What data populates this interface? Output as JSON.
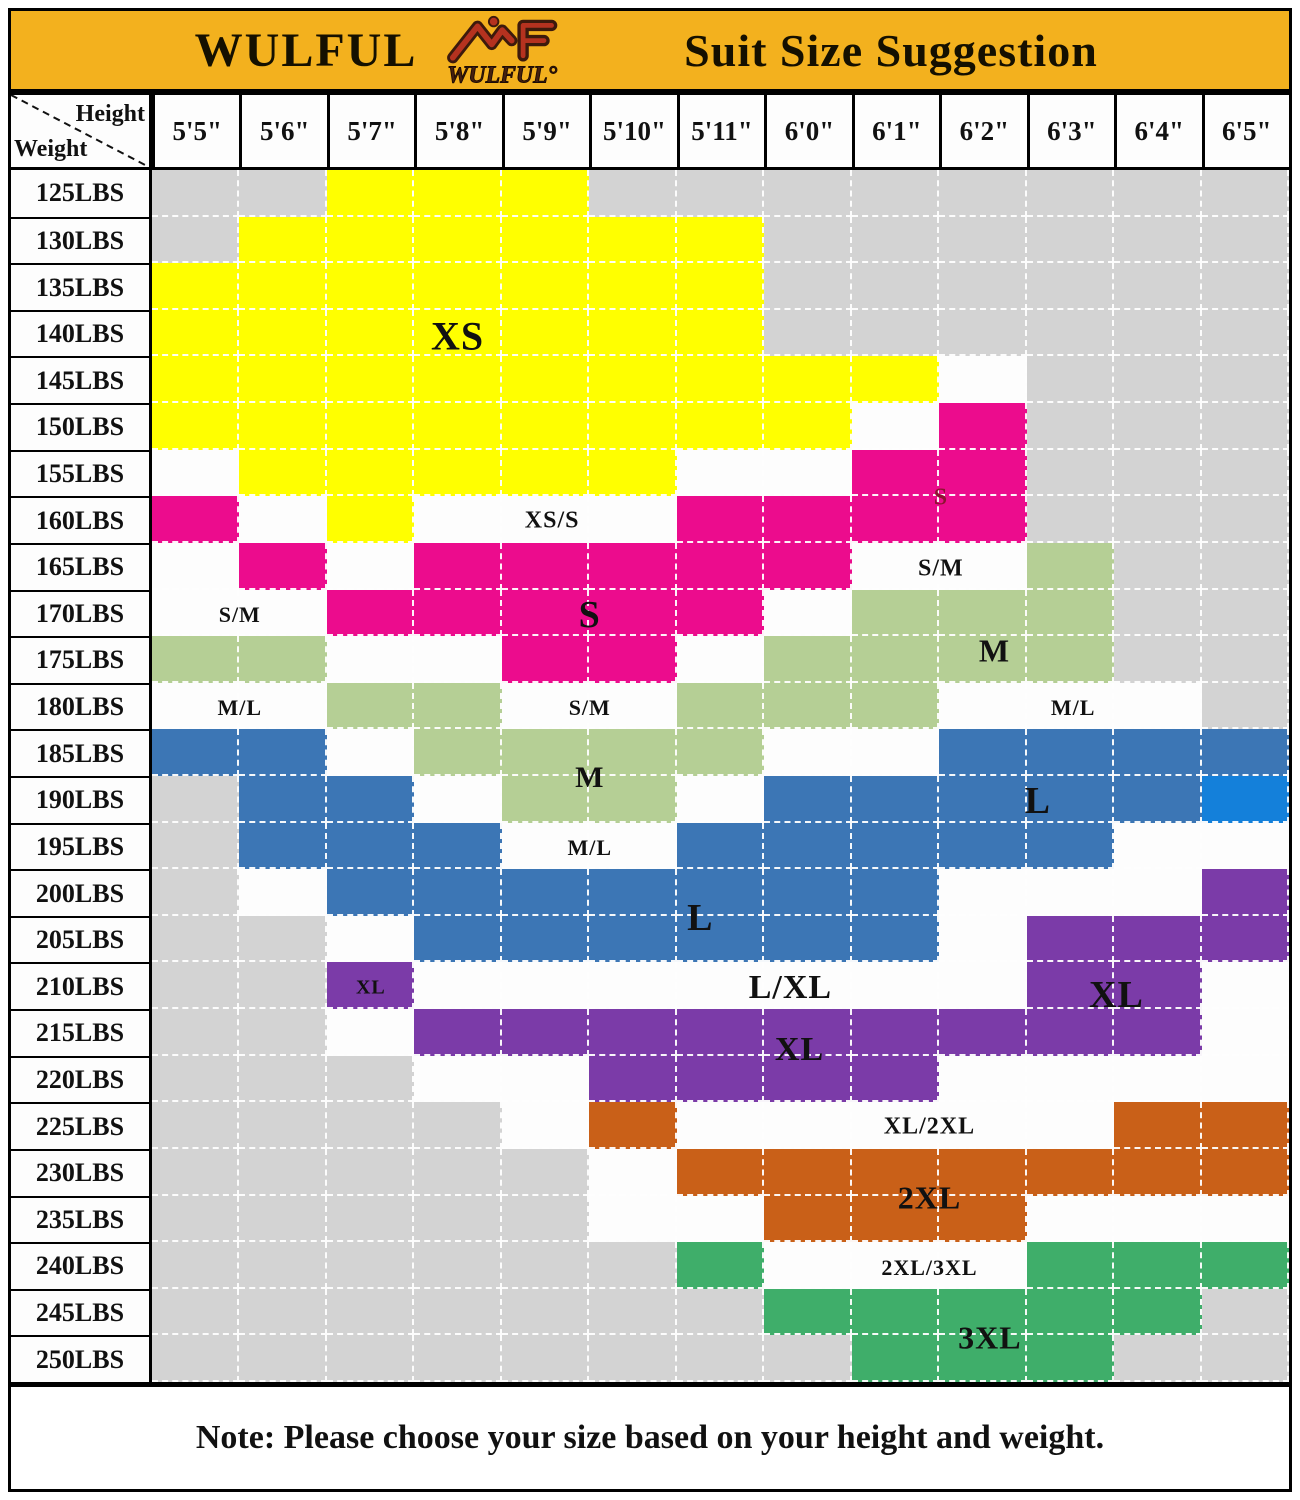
{
  "header": {
    "brand": "WULFUL",
    "title": "Suit Size Suggestion",
    "logo_text": "WULFUL",
    "background_color": "#f3b11e"
  },
  "corner": {
    "top_label": "Height",
    "bottom_label": "Weight"
  },
  "note": {
    "text": "Note: Please choose your size based on your height and weight."
  },
  "chart_data": {
    "type": "heatmap",
    "title": "WULFUL Suit Size Suggestion",
    "xlabel": "Height",
    "ylabel": "Weight",
    "x_categories": [
      "5'5\"",
      "5'6\"",
      "5'7\"",
      "5'8\"",
      "5'9\"",
      "5'10\"",
      "5'11\"",
      "6'0\"",
      "6'1\"",
      "6'2\"",
      "6'3\"",
      "6'4\"",
      "6'5\""
    ],
    "y_categories": [
      "125LBS",
      "130LBS",
      "135LBS",
      "140LBS",
      "145LBS",
      "150LBS",
      "155LBS",
      "160LBS",
      "165LBS",
      "170LBS",
      "175LBS",
      "180LBS",
      "185LBS",
      "190LBS",
      "195LBS",
      "200LBS",
      "205LBS",
      "210LBS",
      "215LBS",
      "220LBS",
      "225LBS",
      "230LBS",
      "235LBS",
      "240LBS",
      "245LBS",
      "250LBS"
    ],
    "legend": {
      "Y": {
        "size": "XS",
        "color": "#ffff00"
      },
      "P": {
        "size": "S",
        "color": "#ec0c8d"
      },
      "N": {
        "size": "M",
        "color": "#b5cf95"
      },
      "B": {
        "size": "L",
        "color": "#3c76b5"
      },
      "H": {
        "size": "L",
        "color": "#1480da"
      },
      "U": {
        "size": "XL",
        "color": "#7b3ba8"
      },
      "O": {
        "size": "2XL",
        "color": "#c96018"
      },
      "T": {
        "size": "3XL",
        "color": "#3fae6a"
      },
      "W": {
        "size": "between sizes",
        "color": "#fdfdfd"
      },
      "G": {
        "size": "n/a",
        "color": "#d3d3d3"
      }
    },
    "cells": [
      "GGYYYGGGGGGGG",
      "GYYYYYYGGGGGG",
      "YYYYYYYGGGGGG",
      "YYYYYYYGGGGGG",
      "YYYYYYYYYWGGG",
      "YYYYYYYYWPGGG",
      "WYYYYYWWPPGGG",
      "PWYWWWPPPPGGG",
      "WPWPPPPPWWNGG",
      "WWPPPPPWNNNGG",
      "NNWWPPWNNNNGG",
      "WWNNWWNNNWWWG",
      "BBWNNNNWWBBBB",
      "GBBWNNWBBBBBH",
      "GBBBWWBBBBBWW",
      "GWBBBBBBBWWWU",
      "GGWBBBBBBWUUU",
      "GGUWWWWWWWUUW",
      "GGWUUUUUUUUUW",
      "GGGWWUUUUWWWW",
      "GGGGWOWWWWWOO",
      "GGGGGWOOOOOOO",
      "GGGGGWWOOOWWW",
      "GGGGGGTWWWTTT",
      "GGGGGGGTTTTTG",
      "GGGGGGGGTTTGG"
    ],
    "annotations": [
      {
        "text": "XS",
        "x": 26.8,
        "y": 13.7,
        "fs": 40
      },
      {
        "text": "XS/S",
        "x": 35.1,
        "y": 28.9,
        "fs": 24
      },
      {
        "text": "S",
        "x": 69.2,
        "y": 27.0,
        "fs": 24,
        "color": "#8c1430"
      },
      {
        "text": "S/M",
        "x": 69.2,
        "y": 32.8,
        "fs": 24
      },
      {
        "text": "S",
        "x": 38.4,
        "y": 36.6,
        "fs": 38
      },
      {
        "text": "S/M",
        "x": 7.7,
        "y": 36.6,
        "fs": 22
      },
      {
        "text": "M",
        "x": 73.9,
        "y": 39.6,
        "fs": 32
      },
      {
        "text": "S/M",
        "x": 38.4,
        "y": 44.3,
        "fs": 22
      },
      {
        "text": "M/L",
        "x": 7.7,
        "y": 44.3,
        "fs": 22
      },
      {
        "text": "M/L",
        "x": 80.8,
        "y": 44.3,
        "fs": 22
      },
      {
        "text": "M",
        "x": 38.4,
        "y": 50.0,
        "fs": 30
      },
      {
        "text": "L",
        "x": 77.7,
        "y": 51.9,
        "fs": 38
      },
      {
        "text": "M/L",
        "x": 38.4,
        "y": 55.8,
        "fs": 22
      },
      {
        "text": "L",
        "x": 48.1,
        "y": 61.6,
        "fs": 38
      },
      {
        "text": "XL",
        "x": 19.2,
        "y": 67.3,
        "fs": 20
      },
      {
        "text": "L/XL",
        "x": 56.0,
        "y": 67.3,
        "fs": 34
      },
      {
        "text": "XL",
        "x": 84.6,
        "y": 67.9,
        "fs": 38
      },
      {
        "text": "XL",
        "x": 56.8,
        "y": 72.4,
        "fs": 34
      },
      {
        "text": "XL/2XL",
        "x": 68.2,
        "y": 78.8,
        "fs": 24
      },
      {
        "text": "2XL",
        "x": 68.2,
        "y": 84.6,
        "fs": 32
      },
      {
        "text": "2XL/3XL",
        "x": 68.2,
        "y": 90.4,
        "fs": 22
      },
      {
        "text": "3XL",
        "x": 73.5,
        "y": 96.1,
        "fs": 32
      }
    ]
  }
}
